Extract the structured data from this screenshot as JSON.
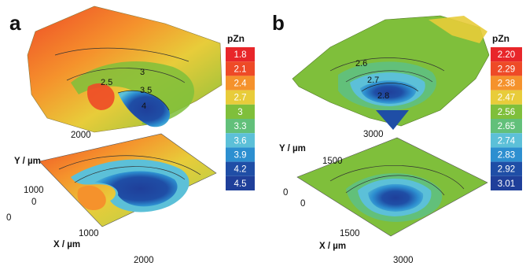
{
  "chart_data": [
    {
      "panel": "a",
      "type": "heatmap",
      "title": "",
      "legend": {
        "title": "pZn",
        "values": [
          "1.8",
          "2.1",
          "2.4",
          "2.7",
          "3",
          "3.3",
          "3.6",
          "3.9",
          "4.2",
          "4.5"
        ],
        "colors": [
          "#e8262a",
          "#ee4a27",
          "#f5922c",
          "#e8cc3a",
          "#7fbf3b",
          "#62c07a",
          "#5cc0d8",
          "#2d8fd0",
          "#1f4ea6",
          "#1f3f9a"
        ]
      },
      "xlabel": "X / µm",
      "ylabel": "Y / µm",
      "x_ticks": [
        "0",
        "1000",
        "2000"
      ],
      "y_ticks": [
        "0",
        "1000",
        "2000"
      ],
      "xlim": [
        0,
        2000
      ],
      "ylim": [
        0,
        2000
      ],
      "contour_labels": [
        "3",
        "2.5",
        "3.5",
        "4"
      ]
    },
    {
      "panel": "b",
      "type": "heatmap",
      "title": "",
      "legend": {
        "title": "pZn",
        "values": [
          "2.20",
          "2.29",
          "2.38",
          "2.47",
          "2.56",
          "2.65",
          "2.74",
          "2.83",
          "2.92",
          "3.01"
        ],
        "colors": [
          "#e8262a",
          "#ee4a27",
          "#f5922c",
          "#e8cc3a",
          "#7fbf3b",
          "#62c07a",
          "#5cc0d8",
          "#2d8fd0",
          "#1f4ea6",
          "#1f3f9a"
        ]
      },
      "xlabel": "X / µm",
      "ylabel": "Y / µm",
      "x_ticks": [
        "0",
        "1500",
        "3000"
      ],
      "y_ticks": [
        "0",
        "1500",
        "3000"
      ],
      "xlim": [
        0,
        3000
      ],
      "ylim": [
        0,
        3000
      ],
      "contour_labels": [
        "2.6",
        "2.7",
        "2.8"
      ]
    }
  ]
}
